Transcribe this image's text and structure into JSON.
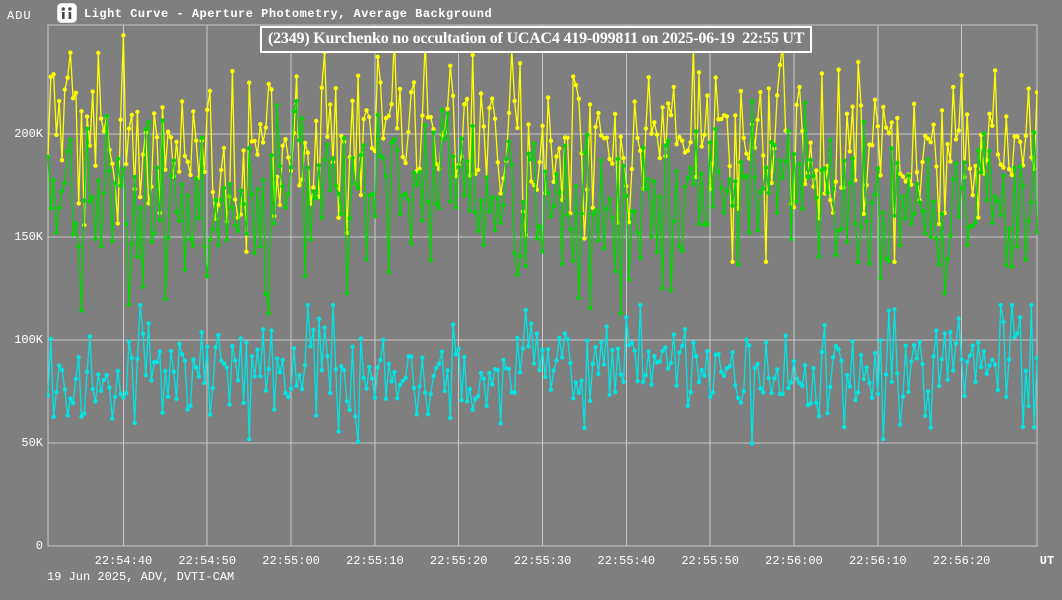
{
  "window": {
    "title": "Light Curve - Aperture Photometry, Average Background"
  },
  "annotation": "(2349) Kurchenko no occultation of UCAC4 419-099811 on 2025-06-19  22:55 UT",
  "footer": "19 Jun 2025, ADV, DVTI-CAM",
  "yaxis": {
    "unit_label": "ADU",
    "ticks": [
      {
        "label": "0",
        "value_adu": 0
      },
      {
        "label": "50K",
        "value_adu": 50000
      },
      {
        "label": "100K",
        "value_adu": 100000
      },
      {
        "label": "150K",
        "value_adu": 150000
      },
      {
        "label": "200K",
        "value_adu": 200000
      }
    ]
  },
  "xaxis": {
    "unit_label": "UT",
    "ticks": [
      "22:54:40",
      "22:54:50",
      "22:55:00",
      "22:55:10",
      "22:55:20",
      "22:55:30",
      "22:55:40",
      "22:55:50",
      "22:56:00",
      "22:56:10",
      "22:56:20"
    ]
  },
  "colors": {
    "background": "#7f7f7f",
    "grid": "#c9c9c9",
    "text": "#ffffff",
    "series_yellow": "#ffff00",
    "series_green": "#00d800",
    "series_cyan": "#00e6e6"
  },
  "chart_data": {
    "type": "line",
    "title": "(2349) Kurchenko no occultation of UCAC4 419-099811 on 2025-06-19 22:55 UT",
    "xlabel": "UT",
    "ylabel": "ADU",
    "x_start": "22:54:31",
    "x_end": "22:56:29",
    "x_tick_labels": [
      "22:54:40",
      "22:54:50",
      "22:55:00",
      "22:55:10",
      "22:55:20",
      "22:55:30",
      "22:55:40",
      "22:55:50",
      "22:56:00",
      "22:56:10",
      "22:56:20"
    ],
    "ylim_adu": [
      0,
      253000
    ],
    "y_tick_values_adu": [
      0,
      50000,
      100000,
      150000,
      200000
    ],
    "grid": true,
    "legend": "none",
    "sample_interval_s": 0.33,
    "n_points": 355,
    "marker": "circle",
    "series": [
      {
        "name": "yellow-lightcurve",
        "color": "#ffff00",
        "mean_adu": 196000,
        "std_adu": 20000,
        "min_adu": 138000,
        "max_adu": 248000,
        "wobble_amp_adu": 6000,
        "wobble_period_s": 41,
        "wobble_phase": 1.1,
        "spike_prob": 0.06,
        "seed": 20250619
      },
      {
        "name": "green-lightcurve",
        "color": "#00d800",
        "mean_adu": 169000,
        "std_adu": 20000,
        "min_adu": 113000,
        "max_adu": 216000,
        "wobble_amp_adu": 6000,
        "wobble_period_s": 53,
        "wobble_phase": 3.6,
        "spike_prob": 0.06,
        "seed": 419
      },
      {
        "name": "cyan-lightcurve",
        "color": "#00e6e6",
        "mean_adu": 84000,
        "std_adu": 12500,
        "min_adu": 40000,
        "max_adu": 117000,
        "wobble_amp_adu": 4000,
        "wobble_period_s": 47,
        "wobble_phase": 5.2,
        "spike_prob": 0.05,
        "seed": 99811
      }
    ]
  }
}
